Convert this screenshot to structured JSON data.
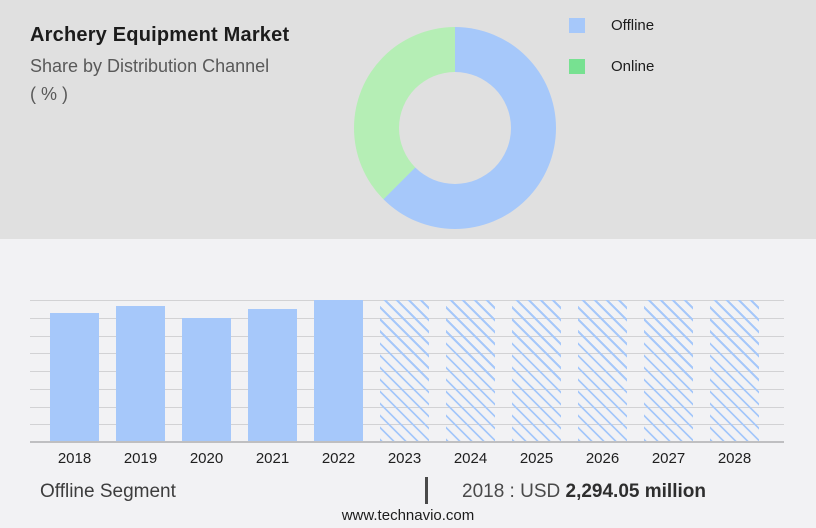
{
  "palette": {
    "top_background": "#e0e0e0",
    "bottom_background": "#f2f2f4",
    "bar_blue": "#a6c8fa",
    "donut_green": "#b5eeb5",
    "legend_green": "#77e191",
    "gridline": "#d2d2d4",
    "axis": "#bfbfc1"
  },
  "header": {
    "title": "Archery Equipment Market",
    "subtitle": "Share by Distribution Channel",
    "unit_line": "( % )"
  },
  "legend": {
    "items": [
      {
        "label": "Offline",
        "color": "#a6c8fa"
      },
      {
        "label": "Online",
        "color": "#77e191"
      }
    ]
  },
  "chart_data": [
    {
      "type": "pie",
      "title": "Share by Distribution Channel ( % )",
      "labels": [
        "Offline",
        "Online"
      ],
      "values": [
        62.5,
        37.5
      ],
      "colors": [
        "#a6c8fa",
        "#b5eeb5"
      ],
      "donut": true,
      "start_angle_deg": 0,
      "legend_position": "right",
      "note": "slice sizes estimated from arc angles; no numeric labels shown"
    },
    {
      "type": "bar",
      "categories": [
        "2018",
        "2019",
        "2020",
        "2021",
        "2022",
        "2023",
        "2024",
        "2025",
        "2026",
        "2027",
        "2028"
      ],
      "values_pct_of_max": [
        90.8,
        95.8,
        87.3,
        93.7,
        100,
        100,
        100,
        100,
        100,
        100,
        100
      ],
      "hatched_forecast_categories": [
        "2023",
        "2024",
        "2025",
        "2026",
        "2027",
        "2028"
      ],
      "bar_color": "#a6c8fa",
      "gridline_count": 9,
      "y_axis_labels": [],
      "known_value": {
        "year": "2018",
        "value_text": "USD 2,294.05 million"
      },
      "note": "no y-axis labels shown; heights read relative to gridlines, forecast bars all reach top gridline"
    }
  ],
  "footer": {
    "segment_label": "Offline Segment",
    "separator": "|",
    "value_prefix": "2018 : USD ",
    "value_bold": "2,294.05 million",
    "website": "www.technavio.com"
  }
}
